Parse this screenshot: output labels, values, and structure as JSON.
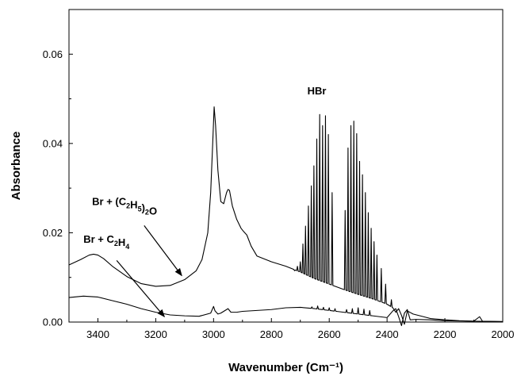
{
  "chart_data": {
    "type": "line",
    "xlabel": "Wavenumber (Cm⁻¹)",
    "ylabel": "Absorbance",
    "xlim": [
      3500,
      2000
    ],
    "ylim": [
      0,
      0.07
    ],
    "x_ticks": [
      {
        "value": 3400,
        "label": "3400"
      },
      {
        "value": 3200,
        "label": "3200"
      },
      {
        "value": 3000,
        "label": "3000"
      },
      {
        "value": 2800,
        "label": "2800"
      },
      {
        "value": 2600,
        "label": "2600"
      },
      {
        "value": 2400,
        "label": "2400"
      },
      {
        "value": 2200,
        "label": "2200"
      },
      {
        "value": 2000,
        "label": "2000"
      }
    ],
    "y_ticks": [
      {
        "value": 0.0,
        "label": "0.00"
      },
      {
        "value": 0.02,
        "label": "0.02"
      },
      {
        "value": 0.04,
        "label": "0.04"
      },
      {
        "value": 0.06,
        "label": "0.06"
      }
    ],
    "grid": false,
    "series": [
      {
        "color": "#000000",
        "baseline": [
          [
            3500,
            0.0128
          ],
          [
            3460,
            0.014
          ],
          [
            3430,
            0.015
          ],
          [
            3415,
            0.0152
          ],
          [
            3400,
            0.015
          ],
          [
            3380,
            0.0142
          ],
          [
            3350,
            0.0125
          ],
          [
            3300,
            0.0102
          ],
          [
            3250,
            0.0086
          ],
          [
            3200,
            0.008
          ],
          [
            3150,
            0.0082
          ],
          [
            3100,
            0.0095
          ],
          [
            3060,
            0.0115
          ],
          [
            3040,
            0.014
          ],
          [
            3020,
            0.02
          ],
          [
            3010,
            0.029
          ],
          [
            3003,
            0.04
          ],
          [
            2998,
            0.0482
          ],
          [
            2993,
            0.044
          ],
          [
            2985,
            0.034
          ],
          [
            2975,
            0.027
          ],
          [
            2965,
            0.0265
          ],
          [
            2955,
            0.029
          ],
          [
            2950,
            0.0297
          ],
          [
            2945,
            0.0295
          ],
          [
            2935,
            0.026
          ],
          [
            2920,
            0.023
          ],
          [
            2905,
            0.021
          ],
          [
            2895,
            0.0202
          ],
          [
            2885,
            0.0195
          ],
          [
            2870,
            0.017
          ],
          [
            2850,
            0.0148
          ],
          [
            2800,
            0.0135
          ],
          [
            2750,
            0.0125
          ],
          [
            2700,
            0.0112
          ],
          [
            2650,
            0.0097
          ],
          [
            2600,
            0.0085
          ],
          [
            2550,
            0.0073
          ],
          [
            2500,
            0.0062
          ],
          [
            2450,
            0.0052
          ],
          [
            2420,
            0.0045
          ],
          [
            2400,
            0.004
          ],
          [
            2380,
            0.0032
          ],
          [
            2370,
            0.0022
          ],
          [
            2360,
            0.003
          ],
          [
            2350,
            0.0015
          ],
          [
            2340,
            -0.0005
          ],
          [
            2330,
            0.0025
          ],
          [
            2310,
            0.0018
          ],
          [
            2250,
            0.0008
          ],
          [
            2200,
            0.0005
          ],
          [
            2150,
            0.0003
          ],
          [
            2100,
            0.0002
          ],
          [
            2080,
            0.0012
          ],
          [
            2070,
            0.0002
          ],
          [
            2000,
            0.0001
          ]
        ],
        "peaks": [
          [
            2720,
            0.0115
          ],
          [
            2710,
            0.0125
          ],
          [
            2700,
            0.0135
          ],
          [
            2691,
            0.0175
          ],
          [
            2682,
            0.0215
          ],
          [
            2672,
            0.026
          ],
          [
            2662,
            0.0305
          ],
          [
            2653,
            0.035
          ],
          [
            2643,
            0.041
          ],
          [
            2633,
            0.0465
          ],
          [
            2623,
            0.044
          ],
          [
            2613,
            0.0462
          ],
          [
            2603,
            0.042
          ],
          [
            2590,
            0.029
          ],
          [
            2545,
            0.025
          ],
          [
            2535,
            0.039
          ],
          [
            2525,
            0.044
          ],
          [
            2515,
            0.045
          ],
          [
            2505,
            0.0422
          ],
          [
            2495,
            0.036
          ],
          [
            2485,
            0.033
          ],
          [
            2475,
            0.029
          ],
          [
            2465,
            0.0245
          ],
          [
            2455,
            0.021
          ],
          [
            2445,
            0.018
          ],
          [
            2435,
            0.015
          ],
          [
            2420,
            0.012
          ],
          [
            2405,
            0.0085
          ],
          [
            2385,
            0.005
          ]
        ]
      },
      {
        "color": "#000000",
        "baseline": [
          [
            3500,
            0.0055
          ],
          [
            3450,
            0.0058
          ],
          [
            3400,
            0.0056
          ],
          [
            3350,
            0.0048
          ],
          [
            3300,
            0.004
          ],
          [
            3250,
            0.003
          ],
          [
            3200,
            0.0022
          ],
          [
            3150,
            0.0016
          ],
          [
            3100,
            0.0014
          ],
          [
            3050,
            0.0013
          ],
          [
            3010,
            0.002
          ],
          [
            3000,
            0.0035
          ],
          [
            2995,
            0.0025
          ],
          [
            2985,
            0.0018
          ],
          [
            2975,
            0.002
          ],
          [
            2960,
            0.0026
          ],
          [
            2950,
            0.003
          ],
          [
            2940,
            0.0022
          ],
          [
            2920,
            0.0022
          ],
          [
            2900,
            0.0024
          ],
          [
            2850,
            0.0026
          ],
          [
            2800,
            0.0028
          ],
          [
            2750,
            0.0032
          ],
          [
            2700,
            0.0033
          ],
          [
            2650,
            0.003
          ],
          [
            2600,
            0.0026
          ],
          [
            2550,
            0.0022
          ],
          [
            2500,
            0.0018
          ],
          [
            2450,
            0.0014
          ],
          [
            2400,
            0.001
          ],
          [
            2380,
            0.0025
          ],
          [
            2370,
            0.003
          ],
          [
            2360,
            0.0012
          ],
          [
            2350,
            -0.0008
          ],
          [
            2340,
            0.002
          ],
          [
            2330,
            0.0028
          ],
          [
            2320,
            0.0005
          ],
          [
            2300,
            0.0006
          ],
          [
            2250,
            0.0005
          ],
          [
            2200,
            0.0003
          ],
          [
            2100,
            0.0002
          ],
          [
            2000,
            0.0001
          ]
        ],
        "peaks": [
          [
            2660,
            0.0034
          ],
          [
            2640,
            0.0036
          ],
          [
            2620,
            0.0033
          ],
          [
            2600,
            0.0032
          ],
          [
            2580,
            0.003
          ],
          [
            2540,
            0.0028
          ],
          [
            2520,
            0.003
          ],
          [
            2500,
            0.0032
          ],
          [
            2480,
            0.0029
          ],
          [
            2460,
            0.0026
          ]
        ]
      }
    ],
    "annotations": [
      {
        "parts": [
          [
            "Br + (C",
            false
          ],
          [
            "2",
            true
          ],
          [
            "H",
            false
          ],
          [
            "5",
            true
          ],
          [
            ")",
            false
          ],
          [
            "2",
            true
          ],
          [
            "O",
            false
          ]
        ],
        "x": 3420,
        "y": 0.0262,
        "target": [
          3110,
          0.0104
        ],
        "tail": [
          3240,
          0.0216
        ]
      },
      {
        "parts": [
          [
            "Br + C",
            false
          ],
          [
            "2",
            true
          ],
          [
            "H",
            false
          ],
          [
            "4",
            true
          ]
        ],
        "x": 3450,
        "y": 0.0178,
        "target": [
          3170,
          0.0012
        ],
        "tail": [
          3335,
          0.0138
        ]
      },
      {
        "parts": [
          [
            "HBr",
            false
          ]
        ],
        "x": 2643,
        "y": 0.051
      }
    ]
  }
}
